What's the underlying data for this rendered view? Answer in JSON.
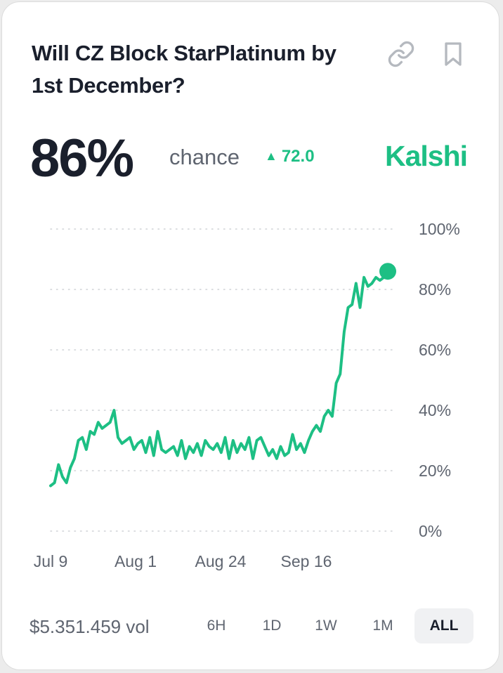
{
  "market": {
    "title": "Will CZ Block StarPlatinum by 1st December?",
    "chance_value": "86%",
    "chance_label": "chance",
    "delta_arrow": "▲",
    "delta_value": "72.0",
    "brand": "Kalshi",
    "volume": "$5.351.459 vol"
  },
  "icons": {
    "link": "link-icon",
    "bookmark": "bookmark-icon"
  },
  "time_ranges": [
    "6H",
    "1D",
    "1W",
    "1M",
    "ALL"
  ],
  "selected_range": "ALL",
  "colors": {
    "accent": "#1dbf84",
    "title_text": "#1a1f2c",
    "muted_text": "#5f6570",
    "icon_gray": "#b5b9bf"
  },
  "chart_data": {
    "type": "line",
    "x_tick_labels": [
      "Jul 9",
      "Aug 1",
      "Aug 24",
      "Sep 16"
    ],
    "y_tick_labels": [
      "100%",
      "80%",
      "60%",
      "40%",
      "20%",
      "0%"
    ],
    "ylim": [
      0,
      100
    ],
    "grid": true,
    "series": [
      {
        "values": [
          15,
          16,
          22,
          18,
          16,
          21,
          24,
          30,
          31,
          27,
          33,
          32,
          36,
          34,
          35,
          36,
          40,
          31,
          29,
          30,
          31,
          27,
          29,
          30,
          26,
          31,
          25,
          33,
          27,
          26,
          27,
          28,
          25,
          30,
          24,
          28,
          26,
          29,
          25,
          30,
          28,
          27,
          29,
          26,
          31,
          24,
          30,
          26,
          29,
          27,
          31,
          24,
          30,
          31,
          28,
          25,
          27,
          24,
          28,
          25,
          26,
          32,
          27,
          29,
          26,
          30,
          33,
          35,
          33,
          38,
          40,
          38,
          49,
          52,
          66,
          74,
          75,
          82,
          74,
          84,
          81,
          82,
          84,
          83,
          84,
          86
        ]
      }
    ]
  }
}
